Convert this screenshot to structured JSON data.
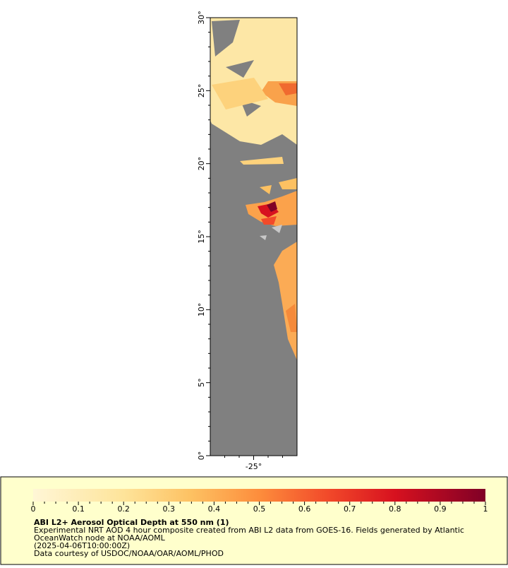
{
  "map": {
    "lat_range": [
      0,
      30
    ],
    "lon_range": [
      -28,
      -22
    ],
    "lat_ticks": [
      {
        "value": 0,
        "label": "0°"
      },
      {
        "value": 5,
        "label": "5°"
      },
      {
        "value": 10,
        "label": "10°"
      },
      {
        "value": 15,
        "label": "15°"
      },
      {
        "value": 20,
        "label": "20°"
      },
      {
        "value": 25,
        "label": "25°"
      },
      {
        "value": 30,
        "label": "30°"
      }
    ],
    "lon_ticks": [
      {
        "value": -25,
        "label": "-25°"
      }
    ]
  },
  "colorbar": {
    "range": [
      0,
      1
    ],
    "ticks": [
      0,
      0.1,
      0.2,
      0.3,
      0.4,
      0.5,
      0.6,
      0.7,
      0.8,
      0.9,
      1
    ]
  },
  "legend": {
    "title": "ABI L2+ Aerosol Optical Depth at 550 nm (1)",
    "lines": [
      "Experimental NRT AOD 4 hour composite created from ABI L2 data from GOES-16. Fields generated by Atlantic",
      "OceanWatch node at NOAA/AOML",
      "(2025-04-06T10:00:00Z)",
      "Data courtesy of USDOC/NOAA/OAR/AOML/PHOD"
    ]
  }
}
